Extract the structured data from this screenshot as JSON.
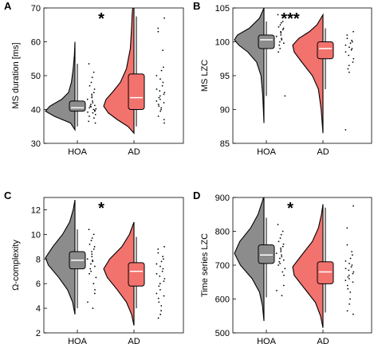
{
  "chart_data": [
    {
      "type": "raincloud",
      "panel_label": "A",
      "ylabel": "MS duration [ms]",
      "ylim": [
        30,
        70
      ],
      "yticks": [
        "30",
        "40",
        "50",
        "60",
        "70"
      ],
      "categories": [
        "HOA",
        "AD"
      ],
      "significance": "*",
      "series": [
        {
          "group": "HOA",
          "color": "#8c8c8c",
          "box": {
            "whisker_low": 35,
            "q1": 39.5,
            "median": 40.5,
            "q3": 42.5,
            "whisker_high": 53.5
          },
          "density": [
            [
              34,
              0
            ],
            [
              36,
              0.15
            ],
            [
              38,
              0.7
            ],
            [
              39.5,
              1.0
            ],
            [
              41,
              0.85
            ],
            [
              43,
              0.45
            ],
            [
              45,
              0.22
            ],
            [
              48,
              0.12
            ],
            [
              52,
              0.06
            ],
            [
              56,
              0.02
            ],
            [
              60,
              0
            ]
          ],
          "points": [
            53.5,
            51,
            49.5,
            48,
            47,
            46,
            45,
            44.5,
            44,
            43.5,
            43,
            42.5,
            42,
            41.5,
            41.2,
            41,
            40.8,
            40.5,
            40.2,
            40,
            39.8,
            39.5,
            39.2,
            39,
            38.5,
            38,
            37.5,
            36.5,
            36
          ]
        },
        {
          "group": "AD",
          "color": "#f2726d",
          "box": {
            "whisker_low": 35,
            "q1": 40,
            "median": 43.5,
            "q3": 50.5,
            "whisker_high": 67.5
          },
          "density": [
            [
              33,
              0
            ],
            [
              35,
              0.2
            ],
            [
              37,
              0.55
            ],
            [
              39,
              0.85
            ],
            [
              41,
              1.0
            ],
            [
              43,
              0.92
            ],
            [
              45,
              0.72
            ],
            [
              48,
              0.45
            ],
            [
              52,
              0.25
            ],
            [
              58,
              0.12
            ],
            [
              64,
              0.08
            ],
            [
              68,
              0.06
            ],
            [
              70,
              0.04
            ]
          ],
          "points": [
            67,
            64,
            63,
            57.5,
            52.5,
            51.5,
            50,
            49,
            48,
            47,
            46,
            45.5,
            45,
            44.5,
            44,
            43.5,
            43,
            42.5,
            42,
            41.5,
            41,
            40.5,
            40,
            39.5,
            38,
            37,
            36
          ]
        }
      ]
    },
    {
      "type": "raincloud",
      "panel_label": "B",
      "ylabel": "MS LZC",
      "ylim": [
        85,
        105
      ],
      "yticks": [
        "85",
        "90",
        "95",
        "100",
        "105"
      ],
      "categories": [
        "HOA",
        "AD"
      ],
      "significance": "***",
      "series": [
        {
          "group": "HOA",
          "color": "#8c8c8c",
          "box": {
            "whisker_low": 92,
            "q1": 99,
            "median": 100.3,
            "q3": 101,
            "whisker_high": 103
          },
          "density": [
            [
              88,
              0
            ],
            [
              92,
              0.04
            ],
            [
              95,
              0.1
            ],
            [
              97,
              0.25
            ],
            [
              98.5,
              0.55
            ],
            [
              99.5,
              0.85
            ],
            [
              100.3,
              1.0
            ],
            [
              101,
              0.9
            ],
            [
              102,
              0.5
            ],
            [
              103.5,
              0.15
            ],
            [
              105,
              0
            ]
          ],
          "points": [
            104,
            103,
            102.8,
            102.5,
            102.2,
            102,
            101.8,
            101.5,
            101.3,
            101,
            100.8,
            100.5,
            100.3,
            100,
            99.8,
            99.5,
            99,
            98.5,
            92
          ]
        },
        {
          "group": "AD",
          "color": "#f2726d",
          "box": {
            "whisker_low": 93,
            "q1": 97.5,
            "median": 99,
            "q3": 100,
            "whisker_high": 102
          },
          "density": [
            [
              86.5,
              0
            ],
            [
              90,
              0.06
            ],
            [
              93,
              0.15
            ],
            [
              95,
              0.35
            ],
            [
              97,
              0.7
            ],
            [
              98.5,
              0.95
            ],
            [
              99.5,
              1.0
            ],
            [
              100.5,
              0.8
            ],
            [
              101.5,
              0.45
            ],
            [
              102.5,
              0.2
            ],
            [
              104,
              0
            ]
          ],
          "points": [
            101.5,
            101,
            100.5,
            100.2,
            100,
            99.8,
            99.5,
            99.2,
            99,
            98.8,
            98.5,
            98,
            97.5,
            97,
            96.5,
            96,
            95.5,
            87
          ]
        }
      ]
    },
    {
      "type": "raincloud",
      "panel_label": "C",
      "ylabel": "Ω-complexity",
      "ylim": [
        2,
        13
      ],
      "yticks": [
        "2",
        "4",
        "6",
        "8",
        "10",
        "12"
      ],
      "categories": [
        "HOA",
        "AD"
      ],
      "significance": "*",
      "series": [
        {
          "group": "HOA",
          "color": "#8c8c8c",
          "box": {
            "whisker_low": 4,
            "q1": 7.2,
            "median": 7.9,
            "q3": 8.6,
            "whisker_high": 10.4
          },
          "density": [
            [
              3.5,
              0
            ],
            [
              4.5,
              0.08
            ],
            [
              5.5,
              0.25
            ],
            [
              6.5,
              0.55
            ],
            [
              7.5,
              0.9
            ],
            [
              8.1,
              1.0
            ],
            [
              9,
              0.75
            ],
            [
              10,
              0.42
            ],
            [
              11,
              0.18
            ],
            [
              12,
              0.06
            ],
            [
              12.8,
              0
            ]
          ],
          "points": [
            10.4,
            10,
            9.7,
            9.5,
            9.2,
            9,
            8.8,
            8.6,
            8.4,
            8.2,
            8,
            7.9,
            7.8,
            7.6,
            7.4,
            7.2,
            7,
            6.8,
            6.5,
            6,
            5.5,
            5.2,
            4.5,
            4
          ]
        },
        {
          "group": "AD",
          "color": "#f2726d",
          "box": {
            "whisker_low": 4,
            "q1": 5.8,
            "median": 7,
            "q3": 7.7,
            "whisker_high": 9.8
          },
          "density": [
            [
              2.6,
              0
            ],
            [
              3.5,
              0.08
            ],
            [
              4.5,
              0.25
            ],
            [
              5.5,
              0.55
            ],
            [
              6.5,
              0.88
            ],
            [
              7.2,
              1.0
            ],
            [
              8,
              0.8
            ],
            [
              9,
              0.4
            ],
            [
              10,
              0.15
            ],
            [
              11,
              0
            ]
          ],
          "points": [
            9,
            8.8,
            8.5,
            8.2,
            8,
            7.8,
            7.6,
            7.4,
            7.2,
            7,
            6.8,
            6.6,
            6.4,
            6.2,
            6,
            5.8,
            5.5,
            5.2,
            5,
            4.8,
            4.5,
            4.2,
            3.8,
            3.5,
            3.2
          ]
        }
      ]
    },
    {
      "type": "raincloud",
      "panel_label": "D",
      "ylabel": "Time series LZC",
      "ylim": [
        500,
        900
      ],
      "yticks": [
        "500",
        "600",
        "700",
        "800",
        "900"
      ],
      "categories": [
        "HOA",
        "AD"
      ],
      "significance": "*",
      "series": [
        {
          "group": "HOA",
          "color": "#8c8c8c",
          "box": {
            "whisker_low": 605,
            "q1": 705,
            "median": 730,
            "q3": 760,
            "whisker_high": 840
          },
          "density": [
            [
              535,
              0
            ],
            [
              580,
              0.05
            ],
            [
              620,
              0.15
            ],
            [
              660,
              0.4
            ],
            [
              700,
              0.8
            ],
            [
              735,
              1.0
            ],
            [
              770,
              0.82
            ],
            [
              810,
              0.45
            ],
            [
              850,
              0.2
            ],
            [
              890,
              0.05
            ],
            [
              905,
              0
            ]
          ],
          "points": [
            820,
            800,
            790,
            780,
            770,
            762,
            755,
            750,
            745,
            740,
            735,
            730,
            725,
            720,
            715,
            710,
            705,
            700,
            690,
            680,
            670,
            640,
            625,
            610
          ]
        },
        {
          "group": "AD",
          "color": "#f2726d",
          "box": {
            "whisker_low": 560,
            "q1": 645,
            "median": 680,
            "q3": 710,
            "whisker_high": 870
          },
          "density": [
            [
              515,
              0
            ],
            [
              550,
              0.08
            ],
            [
              590,
              0.25
            ],
            [
              630,
              0.6
            ],
            [
              670,
              0.95
            ],
            [
              695,
              1.0
            ],
            [
              730,
              0.7
            ],
            [
              770,
              0.35
            ],
            [
              810,
              0.15
            ],
            [
              850,
              0.05
            ],
            [
              880,
              0
            ]
          ],
          "points": [
            875,
            810,
            760,
            740,
            730,
            720,
            712,
            705,
            700,
            695,
            690,
            685,
            680,
            675,
            670,
            665,
            660,
            655,
            650,
            640,
            630,
            620,
            600,
            585,
            565,
            555
          ]
        }
      ]
    }
  ]
}
